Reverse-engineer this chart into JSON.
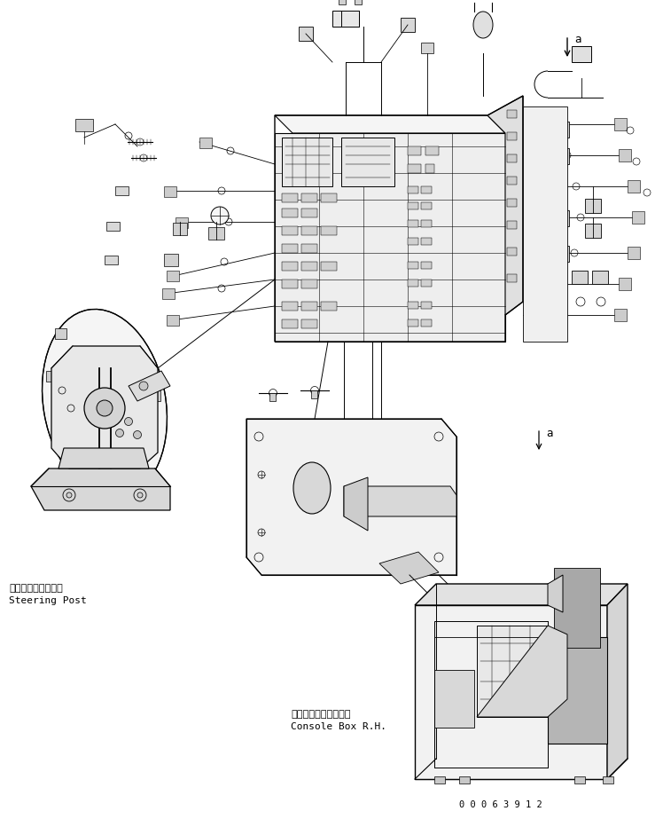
{
  "bg_color": "#ffffff",
  "line_color": "#000000",
  "fig_width": 7.48,
  "fig_height": 9.23,
  "dpi": 100,
  "label_steering_jp": "ステアリングポスト",
  "label_steering_en": "Steering Post",
  "label_console_jp": "コンソールボックス右",
  "label_console_en": "Console Box R.H.",
  "part_number": "0 0 0 6 3 9 1 2",
  "arrow_a_label": "a",
  "font_size_label": 8,
  "font_size_part": 7.5
}
